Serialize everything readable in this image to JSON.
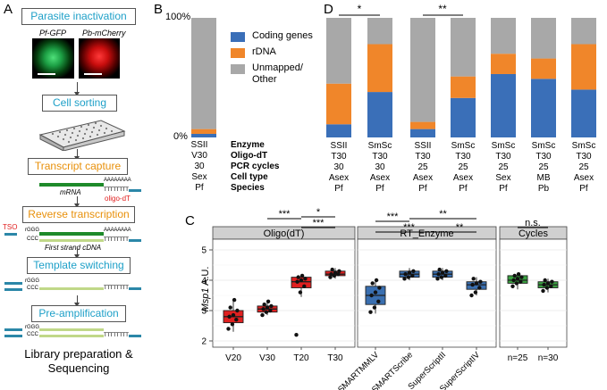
{
  "panelA": {
    "letter": "A",
    "steps": {
      "parasite_inactivation": "Parasite inactivation",
      "cell_sorting": "Cell sorting",
      "transcript_capture": "Transcript capture",
      "reverse_transcription": "Reverse transcription",
      "template_switching": "Template switching",
      "pre_amplification": "Pre-amplification"
    },
    "micrographs": {
      "green_label": "Pf-GFP",
      "red_label": "Pb-mCherry"
    },
    "mrna_label": "mRNA",
    "polyA": "AAAAAAAA",
    "oligo_seq": "TTTTTTTT",
    "oligo_dt_label": "oligo-dT",
    "tso_label": "TSO",
    "rggg": "rGGG",
    "ccc": "CCC",
    "first_strand": "First strand cDNA",
    "footer": [
      "Library preparation &",
      "Sequencing"
    ]
  },
  "panelB": {
    "letter": "B",
    "y_top": "100%",
    "y_bottom": "0%",
    "row_labels": [
      "Enzyme",
      "Oligo-dT",
      "PCR cycles",
      "Cell type",
      "Species"
    ],
    "column": [
      "SSII",
      "V30",
      "30",
      "Sex",
      "Pf"
    ],
    "legend": [
      "Coding genes",
      "rDNA",
      "Unmapped/",
      "Other"
    ]
  },
  "panelD": {
    "letter": "D",
    "sig1": "*",
    "sig2": "**",
    "columns": [
      [
        "SSII",
        "T30",
        "30",
        "Asex",
        "Pf"
      ],
      [
        "SmSc",
        "T30",
        "30",
        "Asex",
        "Pf"
      ],
      [
        "SSII",
        "T30",
        "25",
        "Asex",
        "Pf"
      ],
      [
        "SmSc",
        "T30",
        "25",
        "Asex",
        "Pf"
      ],
      [
        "SmSc",
        "T30",
        "25",
        "Sex",
        "Pf"
      ],
      [
        "SmSc",
        "T30",
        "25",
        "MB",
        "Pb"
      ],
      [
        "SmSc",
        "T30",
        "25",
        "Asex",
        "Pf"
      ]
    ]
  },
  "chart_data": [
    {
      "type": "bar",
      "stacked": true,
      "panel": "B",
      "categories": [
        "SSII V30 30 Sex Pf"
      ],
      "series": [
        {
          "name": "Coding genes",
          "values": [
            3
          ]
        },
        {
          "name": "rDNA",
          "values": [
            4
          ]
        },
        {
          "name": "Unmapped/ Other",
          "values": [
            93
          ]
        }
      ],
      "ylim": [
        0,
        100
      ],
      "colors": {
        "Coding genes": "#3a6fb8",
        "rDNA": "#f0862a",
        "Unmapped/ Other": "#a8a8a8"
      }
    },
    {
      "type": "bar",
      "stacked": true,
      "panel": "D",
      "categories": [
        "SSII T30 30 Asex Pf",
        "SmSc T30 30 Asex Pf",
        "SSII T30 25 Asex Pf",
        "SmSc T30 25 Asex Pf",
        "SmSc T30 25 Sex Pf",
        "SmSc T30 25 MB Pb",
        "SmSc T30 25 Asex Pf"
      ],
      "series": [
        {
          "name": "Coding genes",
          "values": [
            11,
            38,
            7,
            33,
            53,
            49,
            40
          ]
        },
        {
          "name": "rDNA",
          "values": [
            34,
            40,
            6,
            18,
            17,
            17,
            38
          ]
        },
        {
          "name": "Unmapped/ Other",
          "values": [
            55,
            22,
            87,
            49,
            30,
            34,
            22
          ]
        }
      ],
      "ylim": [
        0,
        100
      ],
      "significance": [
        {
          "between": [
            0,
            1
          ],
          "label": "*"
        },
        {
          "between": [
            2,
            3
          ],
          "label": "**"
        }
      ]
    },
    {
      "type": "box",
      "panel": "C",
      "letter": "C",
      "ylabel_italic": "Msp1",
      "ylabel_rest": " A.U.",
      "ylim": [
        2,
        5
      ],
      "yticks": [
        "2",
        "3",
        "4",
        "5"
      ],
      "facets": [
        {
          "title": "Oligo(dT)",
          "color": "#e02020",
          "categories": [
            "V20",
            "V30",
            "T20",
            "T30"
          ],
          "boxes": [
            {
              "q1": 2.6,
              "median": 2.8,
              "q3": 3.0,
              "min": 2.3,
              "max": 3.35
            },
            {
              "q1": 2.95,
              "median": 3.05,
              "q3": 3.15,
              "min": 2.85,
              "max": 3.35
            },
            {
              "q1": 3.75,
              "median": 3.95,
              "q3": 4.1,
              "min": 3.45,
              "max": 4.2
            },
            {
              "q1": 4.15,
              "median": 4.2,
              "q3": 4.3,
              "min": 4.05,
              "max": 4.4
            }
          ],
          "points": [
            [
              2.4,
              2.55,
              2.7,
              2.8,
              2.85,
              3.0,
              3.1,
              3.35
            ],
            [
              2.85,
              2.95,
              3.0,
              3.05,
              3.1,
              3.15,
              3.2,
              3.3
            ],
            [
              2.2,
              3.6,
              3.8,
              3.95,
              4.0,
              4.05,
              4.1,
              4.15
            ],
            [
              4.1,
              4.15,
              4.2,
              4.2,
              4.25,
              4.3,
              4.35
            ]
          ],
          "significance": [
            {
              "from": 1,
              "to": 2,
              "label": "***"
            },
            {
              "from": 2,
              "to": 3,
              "label": "*"
            },
            {
              "from": 2,
              "to": 3,
              "label": "***"
            }
          ]
        },
        {
          "title": "RT_Enzyme",
          "color": "#3a6fb0",
          "categories": [
            "SMARTMMLV",
            "SMARTScribe",
            "SuperScriptII",
            "SuperScriptIV"
          ],
          "boxes": [
            {
              "q1": 3.2,
              "median": 3.5,
              "q3": 3.8,
              "min": 2.9,
              "max": 4.05
            },
            {
              "q1": 4.1,
              "median": 4.2,
              "q3": 4.3,
              "min": 4.0,
              "max": 4.4
            },
            {
              "q1": 4.1,
              "median": 4.2,
              "q3": 4.3,
              "min": 4.0,
              "max": 4.4
            },
            {
              "q1": 3.7,
              "median": 3.85,
              "q3": 3.95,
              "min": 3.5,
              "max": 4.1
            }
          ],
          "points": [
            [
              2.95,
              3.1,
              3.3,
              3.5,
              3.6,
              3.75,
              3.9,
              4.0
            ],
            [
              4.05,
              4.1,
              4.15,
              4.2,
              4.25,
              4.3
            ],
            [
              4.05,
              4.1,
              4.15,
              4.2,
              4.25,
              4.3,
              4.35
            ],
            [
              3.5,
              3.6,
              3.75,
              3.85,
              3.9,
              3.95,
              4.05
            ]
          ],
          "significance": [
            {
              "from": 0,
              "to": 1,
              "label": "***"
            },
            {
              "from": 0,
              "to": 2,
              "label": "***"
            },
            {
              "from": 1,
              "to": 3,
              "label": "**"
            },
            {
              "from": 2,
              "to": 3,
              "label": "**"
            }
          ]
        },
        {
          "title": "Cycles",
          "color": "#3aa040",
          "categories": [
            "n=25",
            "n=30"
          ],
          "boxes": [
            {
              "q1": 3.9,
              "median": 4.0,
              "q3": 4.15,
              "min": 3.7,
              "max": 4.2
            },
            {
              "q1": 3.75,
              "median": 3.85,
              "q3": 3.95,
              "min": 3.6,
              "max": 4.05
            }
          ],
          "points": [
            [
              3.8,
              3.9,
              3.95,
              4.0,
              4.05,
              4.1,
              4.15,
              4.2
            ],
            [
              3.65,
              3.75,
              3.8,
              3.85,
              3.9,
              3.95,
              4.0
            ]
          ],
          "significance": [
            {
              "from": 0,
              "to": 1,
              "label": "n.s."
            }
          ]
        }
      ]
    }
  ]
}
